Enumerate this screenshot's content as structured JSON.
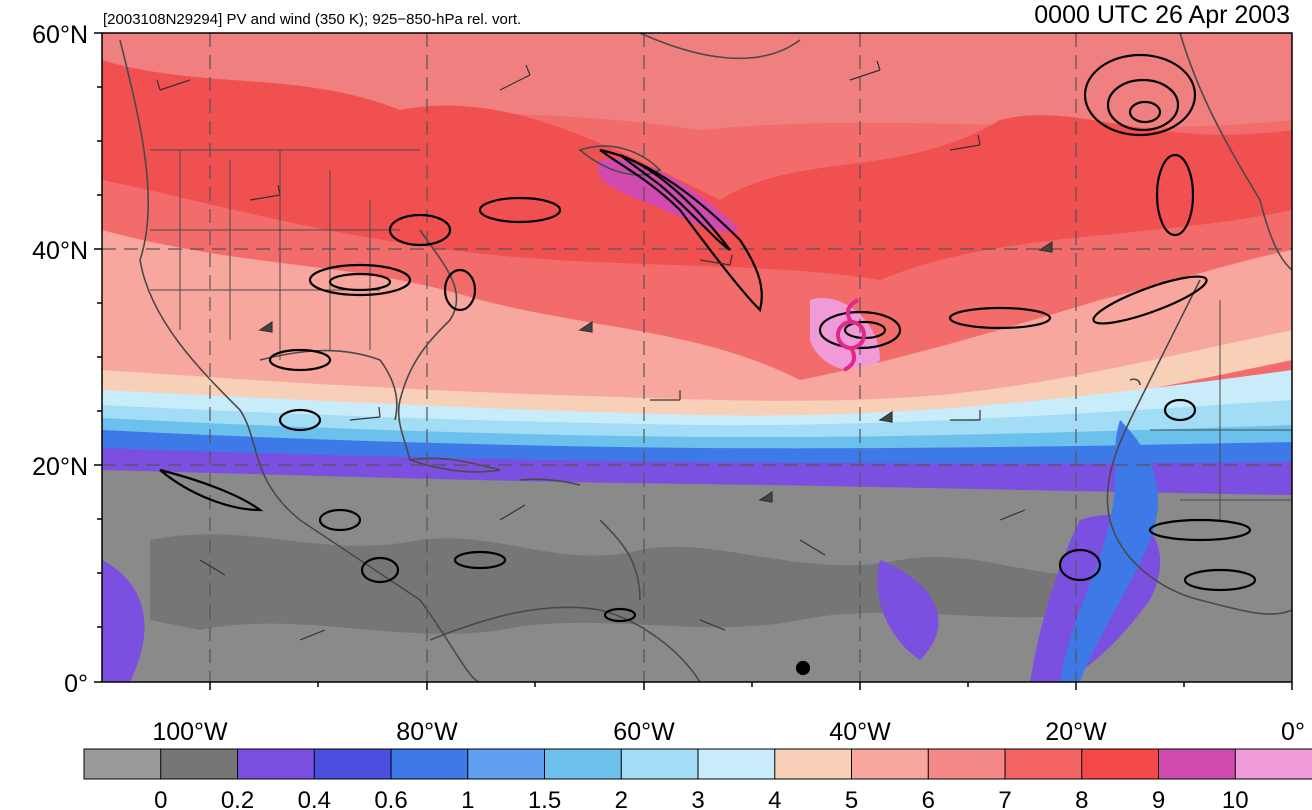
{
  "title_left": "[2003108N29294] PV and wind (350 K); 925−850-hPa rel. vort.",
  "title_right": "0000 UTC 26 Apr 2003",
  "lat_labels": [
    "60°N",
    "40°N",
    "20°N",
    "0°"
  ],
  "lon_labels": [
    "100°W",
    "80°W",
    "60°W",
    "40°W",
    "20°W",
    "0°"
  ],
  "colorbar": {
    "labels": [
      "0",
      "0.2",
      "0.4",
      "0.6",
      "1",
      "1.5",
      "2",
      "3",
      "4",
      "5",
      "6",
      "7",
      "8",
      "9",
      "10"
    ],
    "colors": [
      "#9a9a9a",
      "#767676",
      "#7b4fe0",
      "#4a4fe0",
      "#3d7ae8",
      "#5f9ff0",
      "#6cc0ec",
      "#a3dcf5",
      "#c9ecfb",
      "#f8d0b8",
      "#f8a79e",
      "#f68888",
      "#f26464",
      "#f24848",
      "#d04ab0",
      "#f09ad8"
    ]
  },
  "storm_marker": {
    "name": "tropical-cyclone-symbol",
    "color": "#e0288a",
    "lat": 31.5,
    "lon": -40.5
  },
  "colors": {
    "land_border": "#4a4a4a",
    "grid": "#555555",
    "contour": "#000000"
  }
}
